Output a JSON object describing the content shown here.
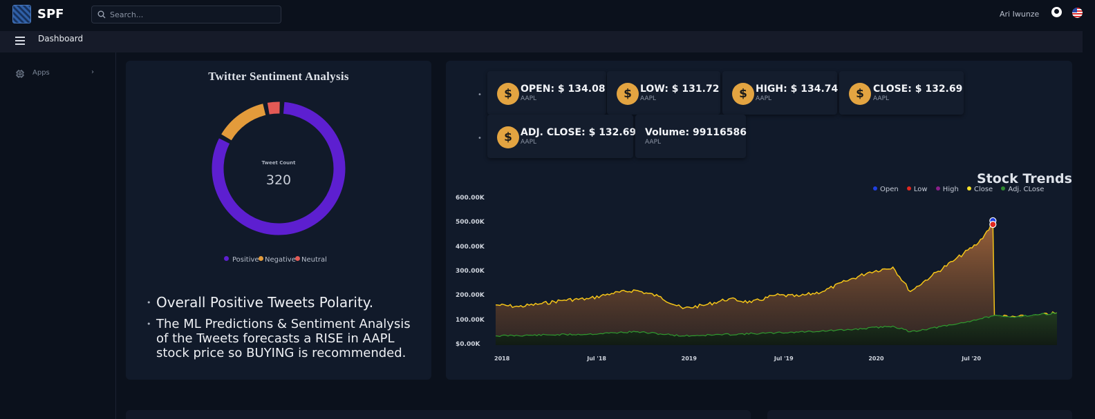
{
  "app": {
    "name": "SPF"
  },
  "search": {
    "placeholder": "Search..."
  },
  "user": {
    "name": "Ari Iwunze"
  },
  "breadcrumb": {
    "title": "Dashboard"
  },
  "sidebar": {
    "items": [
      {
        "label": "Apps",
        "icon": "chip-icon"
      }
    ]
  },
  "sentiment": {
    "title": "Twitter Sentiment Analysis",
    "donut": {
      "caption": "Tweet Count",
      "total": "320",
      "segments": [
        {
          "label": "Positive",
          "value": 263,
          "color": "#5d1fd0"
        },
        {
          "label": "Negative",
          "value": 44,
          "color": "#e39b3b"
        },
        {
          "label": "Neutral",
          "value": 13,
          "color": "#e35a55"
        }
      ]
    },
    "bullets": [
      "Overall Positive Tweets Polarity.",
      "The ML Predictions & Sentiment Analysis of the Tweets forecasts a RISE in AAPL stock price so BUYING is recommended."
    ]
  },
  "stats": [
    {
      "value": "OPEN: $ 134.08",
      "ticker": "AAPL",
      "icon": "dollar-coin-icon"
    },
    {
      "value": "LOW: $ 131.72",
      "ticker": "AAPL",
      "icon": "dollar-coin-icon"
    },
    {
      "value": "HIGH: $ 134.74",
      "ticker": "AAPL",
      "icon": "dollar-coin-icon"
    },
    {
      "value": "CLOSE: $ 132.69",
      "ticker": "AAPL",
      "icon": "dollar-coin-icon"
    },
    {
      "value": "ADJ. CLOSE: $ 132.69",
      "ticker": "AAPL",
      "icon": "dollar-coin-icon"
    },
    {
      "value": "Volume: 99116586",
      "ticker": "AAPL"
    }
  ],
  "coin_symbol": "$",
  "trends": {
    "title": "Stock Trends",
    "legend": [
      {
        "name": "Open",
        "color": "#1f3fe0"
      },
      {
        "name": "Low",
        "color": "#e0281f"
      },
      {
        "name": "High",
        "color": "#8a1f8a"
      },
      {
        "name": "Close",
        "color": "#f5e02a"
      },
      {
        "name": "Adj. CLose",
        "color": "#2f8a2f"
      }
    ]
  },
  "chart_data": {
    "type": "area",
    "title": "Stock Trends",
    "y_ticks": [
      "600.00K",
      "500.00K",
      "400.00K",
      "300.00K",
      "200.00K",
      "100.00K",
      "$0.00K"
    ],
    "ylim": [
      0,
      600000
    ],
    "x_ticks": [
      "2018",
      "Jul '18",
      "2019",
      "Jul '19",
      "2020",
      "Jul '20"
    ],
    "x_range": [
      "2018-01-01",
      "2020-12-31"
    ],
    "series": [
      {
        "name": "Close",
        "color": "#f5c518",
        "points": [
          [
            "2018-01-01",
            165000
          ],
          [
            "2018-02-15",
            158000
          ],
          [
            "2018-04-01",
            170000
          ],
          [
            "2018-05-15",
            185000
          ],
          [
            "2018-07-01",
            190000
          ],
          [
            "2018-08-15",
            212000
          ],
          [
            "2018-10-01",
            225000
          ],
          [
            "2018-11-15",
            200000
          ],
          [
            "2019-01-01",
            150000
          ],
          [
            "2019-02-15",
            165000
          ],
          [
            "2019-04-01",
            190000
          ],
          [
            "2019-05-15",
            175000
          ],
          [
            "2019-07-01",
            205000
          ],
          [
            "2019-08-15",
            200000
          ],
          [
            "2019-10-01",
            220000
          ],
          [
            "2019-11-15",
            262000
          ],
          [
            "2020-01-01",
            300000
          ],
          [
            "2020-02-15",
            320000
          ],
          [
            "2020-03-20",
            220000
          ],
          [
            "2020-05-01",
            285000
          ],
          [
            "2020-06-15",
            350000
          ],
          [
            "2020-07-31",
            420000
          ],
          [
            "2020-08-28",
            500000
          ],
          [
            "2020-08-31",
            120000
          ],
          [
            "2020-10-01",
            115000
          ],
          [
            "2020-11-15",
            118000
          ],
          [
            "2020-12-31",
            132000
          ]
        ]
      },
      {
        "name": "Adj. CLose",
        "color": "#2f9a2f",
        "points": [
          [
            "2018-01-01",
            38000
          ],
          [
            "2018-07-01",
            45000
          ],
          [
            "2018-10-01",
            55000
          ],
          [
            "2019-01-01",
            38000
          ],
          [
            "2019-07-01",
            50000
          ],
          [
            "2019-11-15",
            62000
          ],
          [
            "2020-02-15",
            78000
          ],
          [
            "2020-03-20",
            55000
          ],
          [
            "2020-06-15",
            85000
          ],
          [
            "2020-08-28",
            120000
          ],
          [
            "2020-10-01",
            115000
          ],
          [
            "2020-12-31",
            132000
          ]
        ]
      },
      {
        "name": "Open",
        "color": "#1f3fe0",
        "points": [
          [
            "2020-08-28",
            510000
          ]
        ]
      },
      {
        "name": "Low",
        "color": "#e0281f",
        "points": [
          [
            "2020-08-28",
            495000
          ]
        ]
      }
    ]
  }
}
